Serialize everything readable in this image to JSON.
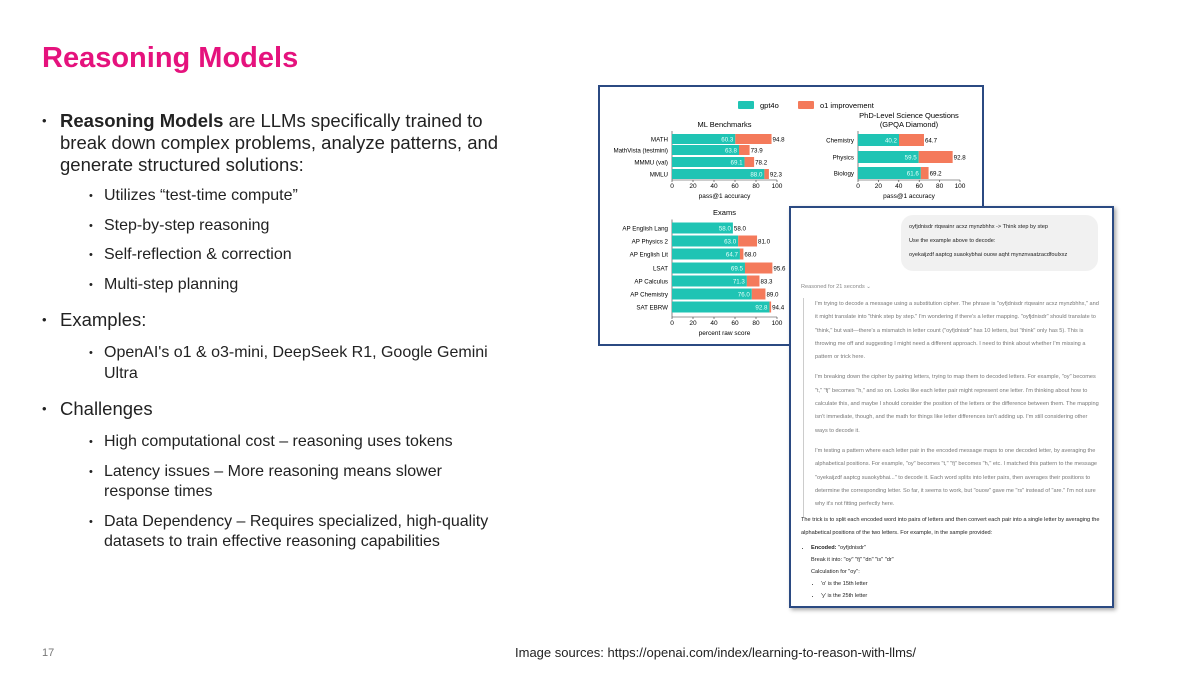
{
  "slide": {
    "title": "Reasoning Models",
    "page_number": "17",
    "source": "Image sources: https://openai.com/index/learning-to-reason-with-llms/"
  },
  "bullets": {
    "intro_bold": "Reasoning Models",
    "intro_rest": " are LLMs specifically trained to break down complex problems, analyze patterns, and generate structured solutions:",
    "intro_sub": [
      "Utilizes “test-time compute”",
      "Step-by-step reasoning",
      "Self-reflection & correction",
      "Multi-step planning"
    ],
    "examples": "Examples:",
    "examples_sub": [
      "OpenAI's o1 & o3-mini, DeepSeek R1, Google Gemini Ultra"
    ],
    "challenges": "Challenges",
    "challenges_sub": [
      "High computational cost – reasoning uses tokens",
      "Latency issues – More reasoning means slower response times",
      "Data Dependency – Requires specialized, high-quality datasets to train effective reasoning capabilities"
    ]
  },
  "legend": {
    "base": "gpt4o",
    "improvement": "o1 improvement",
    "colors": {
      "base": "#1fc4b4",
      "improvement": "#f47a5b"
    }
  },
  "chart_data": [
    {
      "type": "bar",
      "orientation": "horizontal",
      "stacked": true,
      "title": "ML Benchmarks",
      "xlabel": "pass@1 accuracy",
      "xlim": [
        0,
        100
      ],
      "xticks": [
        "0",
        "20",
        "40",
        "60",
        "80",
        "100"
      ],
      "categories": [
        "MATH",
        "MathVista (testmini)",
        "MMMU (val)",
        "MMLU"
      ],
      "series": [
        {
          "name": "gpt4o",
          "values": [
            60.3,
            63.8,
            69.1,
            88.0
          ]
        },
        {
          "name": "o1 improvement",
          "totals": [
            94.8,
            73.9,
            78.2,
            92.3
          ]
        }
      ]
    },
    {
      "type": "bar",
      "orientation": "horizontal",
      "stacked": true,
      "title": "PhD-Level Science Questions",
      "subtitle": "(GPQA Diamond)",
      "xlabel": "pass@1 accuracy",
      "xlim": [
        0,
        100
      ],
      "xticks": [
        "0",
        "20",
        "40",
        "60",
        "80",
        "100"
      ],
      "categories": [
        "Chemistry",
        "Physics",
        "Biology"
      ],
      "series": [
        {
          "name": "gpt4o",
          "values": [
            40.2,
            59.5,
            61.6
          ]
        },
        {
          "name": "o1 improvement",
          "totals": [
            64.7,
            92.8,
            69.2
          ]
        }
      ]
    },
    {
      "type": "bar",
      "orientation": "horizontal",
      "stacked": true,
      "title": "Exams",
      "xlabel": "percent raw score",
      "xlim": [
        0,
        100
      ],
      "xticks": [
        "0",
        "20",
        "40",
        "60",
        "80",
        "100"
      ],
      "categories": [
        "AP English Lang",
        "AP Physics 2",
        "AP English Lit",
        "LSAT",
        "AP Calculus",
        "AP Chemistry",
        "SAT EBRW"
      ],
      "series": [
        {
          "name": "gpt4o",
          "values": [
            58.0,
            63.0,
            64.7,
            69.5,
            71.3,
            76.0,
            92.8
          ]
        },
        {
          "name": "o1 improvement",
          "totals": [
            58.0,
            81.0,
            68.0,
            95.6,
            83.3,
            89.0,
            94.4
          ]
        }
      ]
    }
  ],
  "chat": {
    "user_lines": [
      "oyfjdnisdr rtqwainr acxz mynzbhhx -> Think step by step",
      "Use the example above to decode:",
      "oyekaijzdf aaptcg suaokybhai ouow aqht mynznvaatzacdfoulxxz"
    ],
    "reasoned": "Reasoned for 21 seconds ⌄",
    "thoughts": [
      "I'm trying to decode a message using a substitution cipher. The phrase is \"oyfjdnisdr rtqwainr acxz mynzbhhx,\" and it might translate into \"think step by step.\" I'm wondering if there's a letter mapping. \"oyfjdnisdr\" should translate to \"think,\" but wait—there's a mismatch in letter count (\"oyfjdnisdr\" has 10 letters, but \"think\" only has 5). This is throwing me off and suggesting I might need a different approach. I need to think about whether I'm missing a pattern or trick here.",
      "I'm breaking down the cipher by pairing letters, trying to map them to decoded letters. For example, \"oy\" becomes \"t,\" \"fj\" becomes \"h,\" and so on. Looks like each letter pair might represent one letter. I'm thinking about how to calculate this, and maybe I should consider the position of the letters or the difference between them. The mapping isn't immediate, though, and the math for things like letter differences isn't adding up. I'm still considering other ways to decode it.",
      "I'm testing a pattern where each letter pair in the encoded message maps to one decoded letter, by averaging the alphabetical positions. For example, \"oy\" becomes \"t,\" \"fj\" becomes \"h,\" etc. I matched this pattern to the message \"oyekaijzdf aaptcg suaokybhai...\" to decode it. Each word splits into letter pairs, then averages their positions to determine the corresponding letter. So far, it seems to work, but \"ouow\" gave me \"rs\" instead of \"are.\" I'm not sure why it's not fitting perfectly here."
    ],
    "answer": "The trick is to split each encoded word into pairs of letters and then convert each pair into a single letter by averaging the alphabetical positions of the two letters. For example, in the sample provided:",
    "encoded_label": "Encoded:",
    "encoded_value": " \"oyfjdnisdr\"",
    "break_line": "Break it into: \"oy\" \"fj\" \"dn\" \"is\" \"dr\"",
    "calc_line": "Calculation for \"oy\":",
    "sub_items": [
      "'o' is the 15th letter",
      "'y' is the 25th letter"
    ]
  }
}
